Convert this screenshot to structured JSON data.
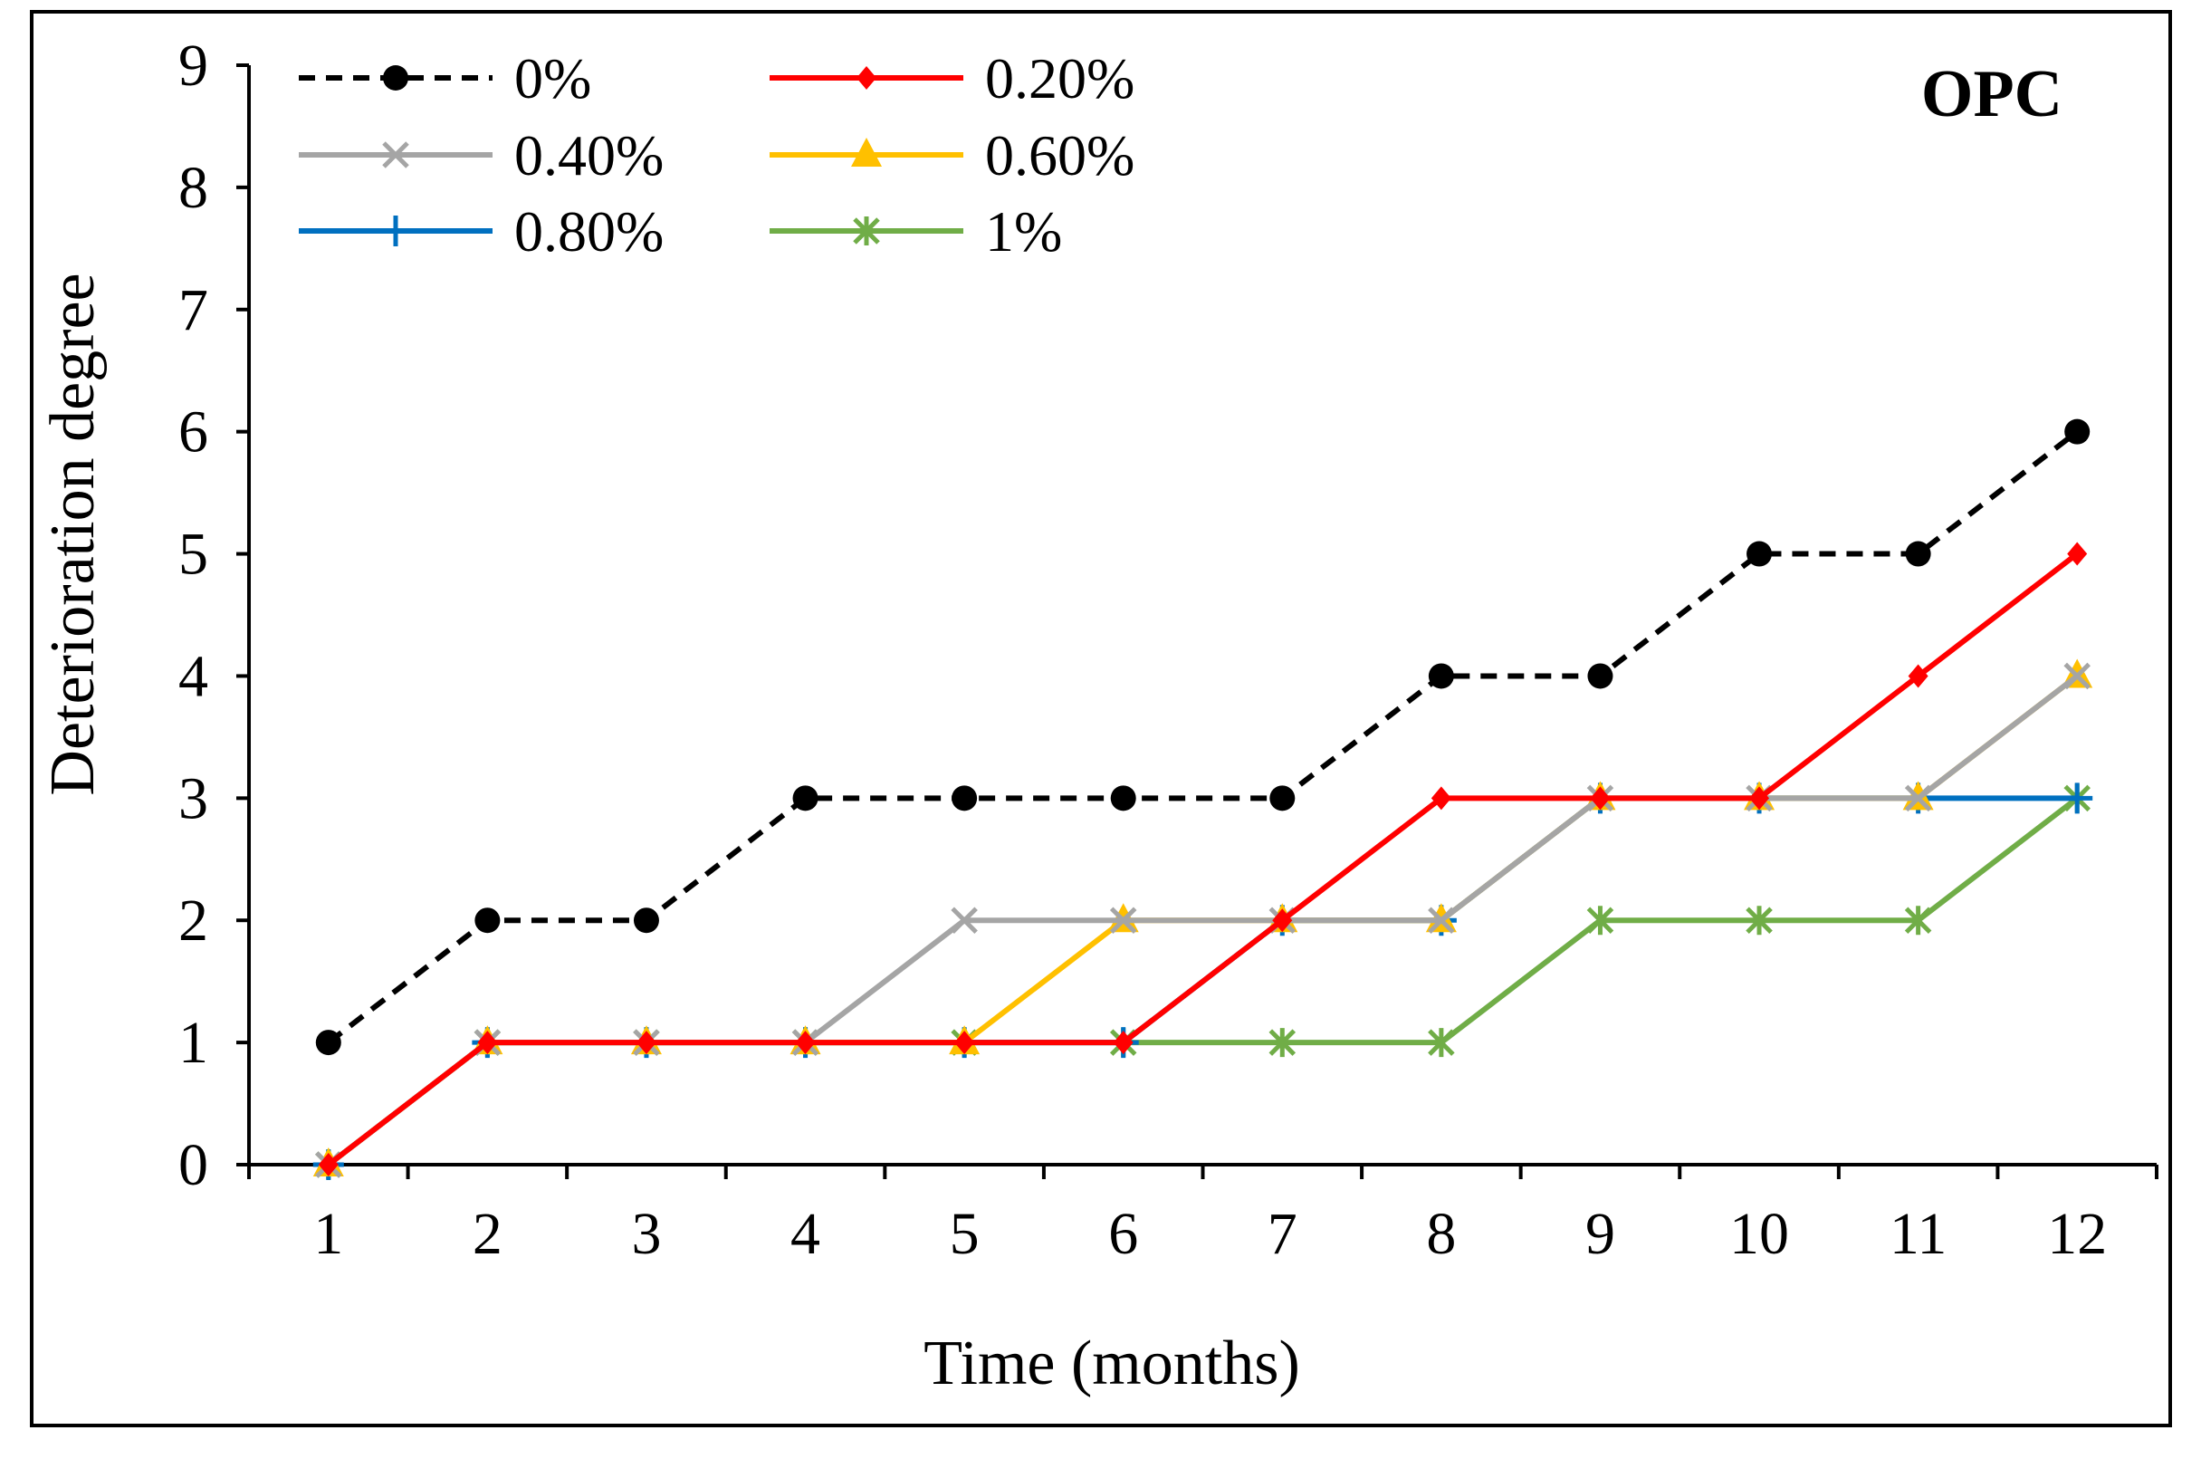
{
  "chart_data": {
    "type": "line",
    "title": "",
    "corner_label": "OPC",
    "xlabel": "Time (months)",
    "ylabel": "Deterioration degree",
    "x": [
      1,
      2,
      3,
      4,
      5,
      6,
      7,
      8,
      9,
      10,
      11,
      12
    ],
    "ylim": [
      0,
      9
    ],
    "yticks": [
      0,
      1,
      2,
      3,
      4,
      5,
      6,
      7,
      8,
      9
    ],
    "grid": false,
    "legend_position": "top-left",
    "series": [
      {
        "name": "0%",
        "color": "#000000",
        "dash": true,
        "marker": "circle",
        "values": [
          1,
          2,
          2,
          3,
          3,
          3,
          3,
          4,
          4,
          5,
          5,
          6
        ]
      },
      {
        "name": "0.20%",
        "color": "#ff0000",
        "dash": false,
        "marker": "diamond",
        "values": [
          0,
          1,
          1,
          1,
          1,
          1,
          2,
          3,
          3,
          3,
          4,
          5
        ]
      },
      {
        "name": "0.40%",
        "color": "#a5a5a5",
        "dash": false,
        "marker": "x",
        "values": [
          0,
          1,
          1,
          1,
          2,
          2,
          2,
          2,
          3,
          3,
          3,
          4
        ]
      },
      {
        "name": "0.60%",
        "color": "#ffc000",
        "dash": false,
        "marker": "triangle",
        "values": [
          0,
          1,
          1,
          1,
          1,
          2,
          2,
          2,
          3,
          3,
          3,
          4
        ]
      },
      {
        "name": "0.80%",
        "color": "#0070c0",
        "dash": false,
        "marker": "plus",
        "values": [
          0,
          1,
          1,
          1,
          1,
          1,
          2,
          2,
          3,
          3,
          3,
          3
        ]
      },
      {
        "name": "1%",
        "color": "#70ad47",
        "dash": false,
        "marker": "star",
        "values": [
          0,
          1,
          1,
          1,
          1,
          1,
          1,
          1,
          2,
          2,
          2,
          3
        ]
      }
    ]
  }
}
